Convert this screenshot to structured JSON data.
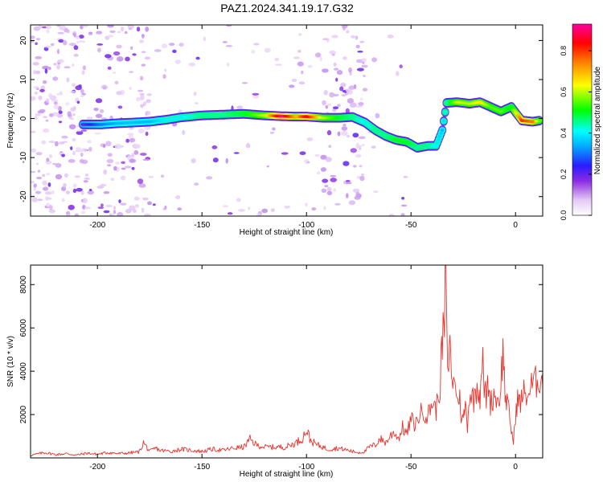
{
  "figure": {
    "title": "PAZ1.2024.341.19.17.G32"
  },
  "chart_data": [
    {
      "type": "heatmap",
      "xlabel": "Height of straight line (km)",
      "ylabel": "Frequency (Hz)",
      "xlim": [
        -232,
        13
      ],
      "ylim": [
        -25,
        24
      ],
      "xticks": [
        -200,
        -150,
        -100,
        -50,
        0
      ],
      "yticks": [
        -20,
        -10,
        0,
        10,
        20
      ],
      "grid": false,
      "colorbar": {
        "label": "Normalized spectral amplitude",
        "range": [
          0,
          0.93
        ],
        "ticks": [
          0.0,
          0.2,
          0.4,
          0.6,
          0.8
        ]
      },
      "ridge": [
        {
          "x": -207,
          "y": -1.5,
          "a": 0.2
        },
        {
          "x": -198,
          "y": -1.5,
          "a": 0.3
        },
        {
          "x": -190,
          "y": -1.2,
          "a": 0.35
        },
        {
          "x": -182,
          "y": -1.0,
          "a": 0.35
        },
        {
          "x": -175,
          "y": -0.8,
          "a": 0.35
        },
        {
          "x": -167,
          "y": -0.3,
          "a": 0.4
        },
        {
          "x": -160,
          "y": 0.3,
          "a": 0.4
        },
        {
          "x": -150,
          "y": 0.8,
          "a": 0.45
        },
        {
          "x": -140,
          "y": 1.0,
          "a": 0.45
        },
        {
          "x": -130,
          "y": 1.2,
          "a": 0.5
        },
        {
          "x": -120,
          "y": 0.8,
          "a": 0.6
        },
        {
          "x": -112,
          "y": 0.6,
          "a": 0.93
        },
        {
          "x": -105,
          "y": 0.5,
          "a": 0.7
        },
        {
          "x": -100,
          "y": 0.5,
          "a": 0.85
        },
        {
          "x": -92,
          "y": 0.2,
          "a": 0.6
        },
        {
          "x": -84,
          "y": 0.2,
          "a": 0.5
        },
        {
          "x": -78,
          "y": 0.4,
          "a": 0.45
        },
        {
          "x": -72,
          "y": -1.0,
          "a": 0.4
        },
        {
          "x": -67,
          "y": -3.0,
          "a": 0.45
        },
        {
          "x": -62,
          "y": -4.5,
          "a": 0.45
        },
        {
          "x": -57,
          "y": -5.5,
          "a": 0.5
        },
        {
          "x": -52,
          "y": -6.0,
          "a": 0.5
        },
        {
          "x": -47,
          "y": -7.5,
          "a": 0.45
        },
        {
          "x": -42,
          "y": -7.0,
          "a": 0.45
        },
        {
          "x": -38,
          "y": -7.0,
          "a": 0.4
        },
        {
          "x": -35,
          "y": -3.0,
          "a": 0.35
        },
        {
          "x": -33,
          "y": 4.0,
          "a": 0.45
        },
        {
          "x": -28,
          "y": 4.2,
          "a": 0.6
        },
        {
          "x": -22,
          "y": 3.8,
          "a": 0.6
        },
        {
          "x": -17,
          "y": 4.2,
          "a": 0.65
        },
        {
          "x": -12,
          "y": 3.0,
          "a": 0.55
        },
        {
          "x": -7,
          "y": 1.8,
          "a": 0.55
        },
        {
          "x": -2,
          "y": 3.0,
          "a": 0.5
        },
        {
          "x": 3,
          "y": -0.5,
          "a": 0.8
        },
        {
          "x": 8,
          "y": -0.8,
          "a": 0.75
        },
        {
          "x": 12,
          "y": -0.5,
          "a": 0.55
        }
      ]
    },
    {
      "type": "line",
      "xlabel": "Height of straight line (km)",
      "ylabel": "SNR (10 * v/v)",
      "xlim": [
        -232,
        13
      ],
      "ylim": [
        0,
        8900
      ],
      "xticks": [
        -200,
        -150,
        -100,
        -50,
        0
      ],
      "yticks": [
        2000,
        4000,
        6000,
        8000
      ],
      "grid": false,
      "series": [
        {
          "color": "#e8322b",
          "x": [
            -232,
            -225,
            -220,
            -215,
            -210,
            -205,
            -200,
            -195,
            -190,
            -185,
            -180,
            -178,
            -175,
            -172,
            -170,
            -165,
            -160,
            -155,
            -150,
            -145,
            -140,
            -135,
            -130,
            -127,
            -124,
            -120,
            -115,
            -110,
            -105,
            -102,
            -100,
            -98,
            -95,
            -92,
            -90,
            -85,
            -80,
            -78,
            -75,
            -72,
            -70,
            -67,
            -65,
            -62,
            -60,
            -58,
            -56,
            -54,
            -52,
            -50,
            -48,
            -46,
            -44,
            -42,
            -40,
            -38,
            -36,
            -35,
            -34,
            -33.5,
            -33,
            -32.5,
            -32,
            -31,
            -30,
            -29,
            -28,
            -27,
            -26,
            -25,
            -24,
            -23,
            -22,
            -20,
            -18,
            -17,
            -16,
            -15,
            -14,
            -13,
            -12,
            -10,
            -8,
            -7,
            -6,
            -5,
            -4,
            -3,
            -2,
            -1,
            0,
            1,
            2,
            4,
            6,
            8,
            10,
            12,
            13
          ],
          "y": [
            120,
            250,
            150,
            200,
            130,
            220,
            170,
            250,
            200,
            230,
            280,
            700,
            300,
            450,
            350,
            300,
            400,
            350,
            300,
            400,
            350,
            450,
            500,
            850,
            600,
            500,
            500,
            500,
            700,
            900,
            1300,
            800,
            600,
            500,
            400,
            450,
            350,
            300,
            250,
            300,
            500,
            600,
            900,
            700,
            1000,
            1200,
            900,
            1400,
            1100,
            1800,
            1500,
            2000,
            2200,
            1900,
            2600,
            2200,
            3500,
            5500,
            6000,
            8900,
            7000,
            3500,
            4500,
            5000,
            3000,
            4000,
            2500,
            3000,
            2000,
            1700,
            2500,
            1500,
            3000,
            2700,
            3500,
            2800,
            4800,
            3200,
            2800,
            3500,
            2500,
            3000,
            2500,
            3500,
            5000,
            3000,
            2500,
            2000,
            1300,
            700,
            2000,
            2700,
            2500,
            3000,
            2900,
            3400,
            3500,
            3800,
            3300
          ]
        }
      ]
    }
  ]
}
